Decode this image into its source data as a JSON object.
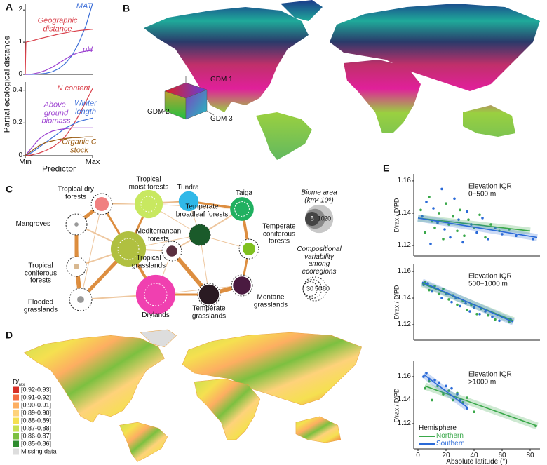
{
  "panel_labels": [
    "A",
    "B",
    "C",
    "D",
    "E"
  ],
  "chart_data": [
    {
      "type": "line",
      "y_label": "Partial ecological distance",
      "ylim": [
        0,
        2.2
      ],
      "yticks": [
        0,
        1,
        2
      ],
      "series": [
        {
          "name": "MAT",
          "color": "#3d6fd8",
          "x": [
            0,
            0.1,
            0.2,
            0.3,
            0.4,
            0.5,
            0.6,
            0.7,
            0.8,
            0.9,
            1
          ],
          "values": [
            0,
            0,
            0.01,
            0.03,
            0.08,
            0.18,
            0.35,
            0.6,
            1.0,
            1.5,
            2.2
          ]
        },
        {
          "name": "Geographic\ndistance",
          "color": "#d9404a",
          "x": [
            0,
            0.01,
            0.1,
            0.2,
            0.3,
            0.4,
            0.5,
            0.6,
            0.7,
            0.8,
            0.9,
            1
          ],
          "values": [
            0,
            1.0,
            1.04,
            1.1,
            1.15,
            1.2,
            1.25,
            1.29,
            1.33,
            1.36,
            1.38,
            1.4
          ]
        },
        {
          "name": "pH",
          "color": "#9b3fd0",
          "x": [
            0,
            0.1,
            0.2,
            0.3,
            0.4,
            0.5,
            0.6,
            0.7,
            0.8,
            0.9,
            1
          ],
          "values": [
            0,
            0.01,
            0.05,
            0.12,
            0.22,
            0.35,
            0.48,
            0.6,
            0.68,
            0.72,
            0.74
          ]
        }
      ]
    },
    {
      "type": "line",
      "x_label": "Predictor",
      "ylim": [
        0,
        0.45
      ],
      "yticks": [
        0,
        0.2,
        0.4
      ],
      "xlim": [
        0,
        1
      ],
      "xticks": [
        {
          "value": 0,
          "label": "Min"
        },
        {
          "value": 1,
          "label": "Max"
        }
      ],
      "series": [
        {
          "name": "N content",
          "color": "#d9404a",
          "x": [
            0,
            0.1,
            0.2,
            0.3,
            0.4,
            0.5,
            0.6,
            0.7,
            0.8,
            0.9,
            1
          ],
          "values": [
            0,
            0.005,
            0.015,
            0.03,
            0.05,
            0.08,
            0.12,
            0.18,
            0.25,
            0.33,
            0.41
          ]
        },
        {
          "name": "Winter\nlength",
          "color": "#3d6fd8",
          "x": [
            0,
            0.1,
            0.2,
            0.3,
            0.4,
            0.5,
            0.6,
            0.7,
            0.8,
            0.9,
            1
          ],
          "values": [
            0,
            0.02,
            0.05,
            0.08,
            0.11,
            0.14,
            0.17,
            0.19,
            0.21,
            0.22,
            0.23
          ]
        },
        {
          "name": "Above-\nground\nbiomass",
          "color": "#9b3fd0",
          "x": [
            0,
            0.1,
            0.2,
            0.3,
            0.4,
            0.5,
            0.6,
            0.7,
            0.8,
            0.9,
            1
          ],
          "values": [
            0,
            0.05,
            0.1,
            0.13,
            0.15,
            0.16,
            0.165,
            0.17,
            0.17,
            0.17,
            0.17
          ]
        },
        {
          "name": "Organic C\nstock",
          "color": "#9a5a10",
          "x": [
            0,
            0.1,
            0.2,
            0.3,
            0.4,
            0.5,
            0.6,
            0.7,
            0.8,
            0.9,
            1
          ],
          "values": [
            0,
            0.03,
            0.06,
            0.08,
            0.09,
            0.1,
            0.105,
            0.11,
            0.11,
            0.115,
            0.115
          ]
        }
      ]
    },
    {
      "type": "scatter",
      "annotation": "Elevation IQR\n0−500 m",
      "y_label": "D′rax / D′PD",
      "xlim": [
        -3,
        87
      ],
      "ylim": [
        1.1135,
        1.1643
      ],
      "yticks": [
        1.12,
        1.14,
        1.16
      ],
      "series": [
        {
          "color": "#3aa84a",
          "x": [
            2,
            5,
            8,
            10,
            12,
            15,
            18,
            20,
            22,
            25,
            28,
            30,
            33,
            36,
            40,
            44,
            48,
            52,
            58,
            65
          ],
          "values": [
            1.142,
            1.128,
            1.15,
            1.135,
            1.131,
            1.14,
            1.124,
            1.146,
            1.133,
            1.138,
            1.129,
            1.142,
            1.126,
            1.136,
            1.131,
            1.139,
            1.125,
            1.133,
            1.129,
            1.13
          ],
          "fit": {
            "x": [
              0,
              80
            ],
            "values": [
              1.137,
              1.129
            ]
          }
        },
        {
          "color": "#2a6ad8",
          "x": [
            3,
            6,
            9,
            11,
            14,
            17,
            19,
            23,
            26,
            29,
            32,
            35,
            38,
            42,
            46,
            50,
            55,
            60,
            70,
            82
          ],
          "values": [
            1.138,
            1.147,
            1.121,
            1.143,
            1.134,
            1.155,
            1.13,
            1.125,
            1.149,
            1.136,
            1.122,
            1.141,
            1.133,
            1.128,
            1.137,
            1.124,
            1.131,
            1.127,
            1.126,
            1.124
          ],
          "fit": {
            "x": [
              0,
              85
            ],
            "values": [
              1.137,
              1.125
            ]
          }
        }
      ]
    },
    {
      "type": "scatter",
      "annotation": "Elevation IQR\n500−1000 m",
      "y_label": "D′rax / D′PD",
      "xlim": [
        -3,
        87
      ],
      "ylim": [
        1.1084,
        1.1653
      ],
      "yticks": [
        1.12,
        1.14,
        1.16
      ],
      "series": [
        {
          "color": "#3aa84a",
          "x": [
            5,
            8,
            12,
            15,
            18,
            22,
            25,
            28,
            32,
            35,
            38,
            42,
            45,
            50,
            55,
            60,
            65
          ],
          "values": [
            1.152,
            1.146,
            1.149,
            1.143,
            1.147,
            1.139,
            1.142,
            1.135,
            1.138,
            1.131,
            1.135,
            1.128,
            1.132,
            1.127,
            1.124,
            1.126,
            1.122
          ],
          "fit": {
            "x": [
              3,
              68
            ],
            "values": [
              1.151,
              1.123
            ]
          }
        },
        {
          "color": "#2a6ad8",
          "x": [
            4,
            7,
            10,
            14,
            17,
            20,
            24,
            27,
            30,
            34,
            37,
            40,
            44,
            48,
            53,
            58,
            66
          ],
          "values": [
            1.15,
            1.151,
            1.145,
            1.147,
            1.14,
            1.143,
            1.137,
            1.14,
            1.134,
            1.136,
            1.13,
            1.133,
            1.128,
            1.13,
            1.126,
            1.123,
            1.124
          ],
          "fit": {
            "x": [
              3,
              68
            ],
            "values": [
              1.152,
              1.122
            ]
          }
        }
      ]
    },
    {
      "type": "scatter",
      "annotation": "Elevation IQR\n>1000 m",
      "y_label": "D′rax / D′PD",
      "x_label": "Absolute latitude (°)",
      "legend_title": "Hemisphere",
      "xlim": [
        -3,
        87
      ],
      "xticks": [
        0,
        20,
        40,
        60,
        80
      ],
      "ylim": [
        1.0985,
        1.1731
      ],
      "yticks": [
        1.12,
        1.14,
        1.16
      ],
      "series": [
        {
          "name": "Northern",
          "color": "#3aa84a",
          "x": [
            5,
            8,
            10,
            14,
            18,
            22,
            25,
            28,
            32,
            35,
            40,
            84
          ],
          "values": [
            1.15,
            1.156,
            1.14,
            1.152,
            1.145,
            1.148,
            1.14,
            1.146,
            1.138,
            1.142,
            1.13,
            1.118
          ],
          "fit": {
            "x": [
              5,
              85
            ],
            "values": [
              1.152,
              1.118
            ]
          }
        },
        {
          "name": "Southern",
          "color": "#2a6ad8",
          "x": [
            4,
            6,
            8,
            12,
            15,
            20,
            24,
            28,
            30,
            35
          ],
          "values": [
            1.16,
            1.163,
            1.158,
            1.157,
            1.155,
            1.152,
            1.15,
            1.145,
            1.14,
            1.133
          ],
          "fit": {
            "x": [
              4,
              35
            ],
            "values": [
              1.162,
              1.134
            ]
          }
        }
      ]
    }
  ],
  "map_b": {
    "axis_labels": [
      "GDM 1",
      "GDM 2",
      "GDM 3"
    ]
  },
  "network": {
    "nodes": [
      {
        "label": "Tropical dry\nforests",
        "color": "#f08080",
        "area": 5,
        "variability": 62
      },
      {
        "label": "Tropical\nmoist forests",
        "color": "#c8e860",
        "area": 20,
        "variability": 34
      },
      {
        "label": "Tundra",
        "color": "#30b8e8",
        "area": 10,
        "variability": null
      },
      {
        "label": "Taiga",
        "color": "#20b060",
        "area": 14,
        "variability": 30
      },
      {
        "label": "Mangroves",
        "color": "#9a9a9a",
        "area": 0.4,
        "variability": 62
      },
      {
        "label": "Mediterranean\nforests",
        "color": "#5a3040",
        "area": 3,
        "variability": 54
      },
      {
        "label": "Temperate\nbroadleaf forests",
        "color": "#1a5a2a",
        "area": 11,
        "variability": 62
      },
      {
        "label": "Temperate\nconiferous\nforests",
        "color": "#80c020",
        "area": 4,
        "variability": 54
      },
      {
        "label": "Tropical\ngrasslands",
        "color": "#b0c040",
        "area": 31,
        "variability": 62
      },
      {
        "label": "Tropical\nconiferous\nforests",
        "color": "#d8b890",
        "area": 0.8,
        "variability": 54
      },
      {
        "label": "Flooded\ngrasslands",
        "color": "#999999",
        "area": 1.2,
        "variability": 71
      },
      {
        "label": "Drylands",
        "color": "#f040b0",
        "area": 39,
        "variability": 71
      },
      {
        "label": "Temperate\ngrasslands",
        "color": "#2a1a22",
        "area": 10,
        "variability": 71
      },
      {
        "label": "Montane\ngrasslands",
        "color": "#4a1a40",
        "area": 8,
        "variability": 62
      }
    ],
    "edge_color": "#d9822b",
    "edges": [
      [
        0,
        4,
        5
      ],
      [
        0,
        8,
        3
      ],
      [
        4,
        9,
        5
      ],
      [
        9,
        10,
        6
      ],
      [
        10,
        8,
        5
      ],
      [
        8,
        1,
        3
      ],
      [
        8,
        11,
        4
      ],
      [
        11,
        12,
        3
      ],
      [
        12,
        13,
        6
      ],
      [
        13,
        7,
        3
      ],
      [
        7,
        3,
        4
      ],
      [
        3,
        2,
        3
      ],
      [
        2,
        1,
        2
      ],
      [
        6,
        3,
        2
      ],
      [
        5,
        6,
        2
      ],
      [
        5,
        12,
        6
      ],
      [
        8,
        5,
        2
      ],
      [
        0,
        1,
        1
      ],
      [
        0,
        2,
        1
      ],
      [
        4,
        8,
        2
      ],
      [
        8,
        6,
        1
      ],
      [
        1,
        6,
        1
      ],
      [
        2,
        6,
        1
      ],
      [
        11,
        13,
        1
      ],
      [
        11,
        5,
        1
      ],
      [
        10,
        11,
        2
      ],
      [
        9,
        8,
        2
      ],
      [
        6,
        7,
        1
      ],
      [
        6,
        12,
        1
      ],
      [
        1,
        3,
        1
      ],
      [
        0,
        10,
        1
      ],
      [
        4,
        10,
        1
      ]
    ],
    "legend_area_title": "Biome area\n(km² 10⁶)",
    "legend_area": [
      20,
      10,
      5
    ],
    "legend_var_title": "Compositional\nvariability\namong\necoregions",
    "legend_var": [
      30,
      50,
      80
    ]
  },
  "map_d": {
    "legend_title": "D′",
    "legend_title_sub": "rax",
    "legend": [
      {
        "label": "[0.92-0.93]",
        "color": "#d73027"
      },
      {
        "label": "[0.91-0.92]",
        "color": "#f46d43"
      },
      {
        "label": "[0.90-0.91]",
        "color": "#fdae61"
      },
      {
        "label": "[0.89-0.90]",
        "color": "#fed27a"
      },
      {
        "label": "[0.88-0.89]",
        "color": "#f5e050"
      },
      {
        "label": "[0.87-0.88]",
        "color": "#c8e050"
      },
      {
        "label": "[0.86-0.87]",
        "color": "#7cc040"
      },
      {
        "label": "[0.85-0.86]",
        "color": "#2e8b2e"
      },
      {
        "label": "Missing data",
        "color": "#dddddd"
      }
    ]
  }
}
